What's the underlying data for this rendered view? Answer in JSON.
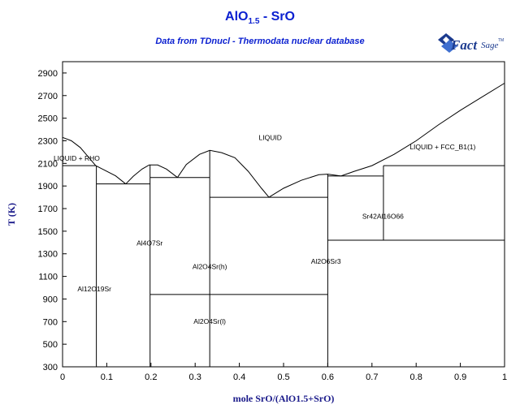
{
  "header": {
    "title_main": "AlO",
    "title_sub": "1.5",
    "title_rest": " - SrO",
    "subtitle": "Data from TDnucl - Thermodata nuclear database"
  },
  "logo": {
    "word1": "Fact",
    "word2": "Sage",
    "mark": "TM"
  },
  "chart_data": {
    "type": "line",
    "title": "AlO1.5 - SrO",
    "subtitle": "Data from TDnucl - Thermodata nuclear database",
    "xlabel": "mole SrO/(AlO1.5+SrO)",
    "ylabel": "T (K)",
    "xlim": [
      0,
      1
    ],
    "ylim": [
      300,
      3000
    ],
    "x_ticks": [
      {
        "v": 0,
        "label": "0"
      },
      {
        "v": 0.1,
        "label": "0.1"
      },
      {
        "v": 0.2,
        "label": "0.2"
      },
      {
        "v": 0.3,
        "label": "0.3"
      },
      {
        "v": 0.4,
        "label": "0.4"
      },
      {
        "v": 0.5,
        "label": "0.5"
      },
      {
        "v": 0.6,
        "label": "0.6"
      },
      {
        "v": 0.7,
        "label": "0.7"
      },
      {
        "v": 0.8,
        "label": "0.8"
      },
      {
        "v": 0.9,
        "label": "0.9"
      },
      {
        "v": 1,
        "label": "1"
      }
    ],
    "y_ticks": [
      {
        "v": 300,
        "label": "300"
      },
      {
        "v": 500,
        "label": "500"
      },
      {
        "v": 700,
        "label": "700"
      },
      {
        "v": 900,
        "label": "900"
      },
      {
        "v": 1100,
        "label": "1100"
      },
      {
        "v": 1300,
        "label": "1300"
      },
      {
        "v": 1500,
        "label": "1500"
      },
      {
        "v": 1700,
        "label": "1700"
      },
      {
        "v": 1900,
        "label": "1900"
      },
      {
        "v": 2100,
        "label": "2100"
      },
      {
        "v": 2300,
        "label": "2300"
      },
      {
        "v": 2500,
        "label": "2500"
      },
      {
        "v": 2700,
        "label": "2700"
      },
      {
        "v": 2900,
        "label": "2900"
      }
    ],
    "grid": false,
    "line_color": "#000000",
    "curves": [
      {
        "name": "liquidus-alumina",
        "points": [
          [
            0,
            2330
          ],
          [
            0.02,
            2300
          ],
          [
            0.04,
            2240
          ],
          [
            0.06,
            2150
          ],
          [
            0.075,
            2080
          ],
          [
            0.09,
            2050
          ],
          [
            0.12,
            1990
          ],
          [
            0.143,
            1918
          ]
        ]
      },
      {
        "name": "liquidus-al12o19sr",
        "points": [
          [
            0.143,
            1918
          ],
          [
            0.16,
            1985
          ],
          [
            0.18,
            2050
          ],
          [
            0.196,
            2086
          ]
        ]
      },
      {
        "name": "liquidus-al4o7sr-left",
        "points": [
          [
            0.196,
            2086
          ],
          [
            0.215,
            2086
          ],
          [
            0.235,
            2050
          ],
          [
            0.26,
            1975
          ]
        ]
      },
      {
        "name": "liquidus-al4o7sr-right",
        "points": [
          [
            0.26,
            1975
          ],
          [
            0.28,
            2090
          ],
          [
            0.31,
            2180
          ],
          [
            0.333,
            2215
          ],
          [
            0.36,
            2195
          ],
          [
            0.39,
            2150
          ],
          [
            0.42,
            2030
          ],
          [
            0.45,
            1880
          ],
          [
            0.467,
            1800
          ]
        ]
      },
      {
        "name": "liquidus-al2o6sr3",
        "points": [
          [
            0.467,
            1800
          ],
          [
            0.5,
            1880
          ],
          [
            0.54,
            1950
          ],
          [
            0.58,
            2000
          ],
          [
            0.6,
            2005
          ],
          [
            0.63,
            1988
          ]
        ]
      },
      {
        "name": "liquidus-sro",
        "points": [
          [
            0.63,
            1988
          ],
          [
            0.66,
            2030
          ],
          [
            0.7,
            2080
          ],
          [
            0.75,
            2180
          ],
          [
            0.8,
            2300
          ],
          [
            0.85,
            2440
          ],
          [
            0.9,
            2570
          ],
          [
            0.95,
            2690
          ],
          [
            1,
            2810
          ]
        ]
      }
    ],
    "boundaries": [
      {
        "from": [
          0,
          2080
        ],
        "to": [
          0.075,
          2080
        ]
      },
      {
        "from": [
          0.0765,
          300
        ],
        "to": [
          0.0765,
          2080
        ]
      },
      {
        "from": [
          0.0765,
          1918
        ],
        "to": [
          0.198,
          1918
        ]
      },
      {
        "from": [
          0.198,
          300
        ],
        "to": [
          0.198,
          2086
        ]
      },
      {
        "from": [
          0.198,
          1975
        ],
        "to": [
          0.333,
          1975
        ]
      },
      {
        "from": [
          0.333,
          300
        ],
        "to": [
          0.333,
          2215
        ]
      },
      {
        "from": [
          0.333,
          1800
        ],
        "to": [
          0.6,
          1800
        ]
      },
      {
        "from": [
          0.198,
          940
        ],
        "to": [
          0.6,
          940
        ]
      },
      {
        "from": [
          0.6,
          300
        ],
        "to": [
          0.6,
          2005
        ]
      },
      {
        "from": [
          0.6,
          1988
        ],
        "to": [
          0.726,
          1988
        ]
      },
      {
        "from": [
          0.726,
          1420
        ],
        "to": [
          0.726,
          2080
        ]
      },
      {
        "from": [
          0.6,
          1420
        ],
        "to": [
          1,
          1420
        ]
      },
      {
        "from": [
          0.726,
          2080
        ],
        "to": [
          1,
          2080
        ]
      }
    ],
    "annotations": [
      {
        "text": "LIQUID",
        "x": 0.47,
        "y": 2330
      },
      {
        "text": "LIQUID + RHO",
        "x": 0.032,
        "y": 2145
      },
      {
        "text": "LIQUID + FCC_B1(1)",
        "x": 0.86,
        "y": 2245
      },
      {
        "text": "Sr42Al16O66",
        "x": 0.725,
        "y": 1633
      },
      {
        "text": "Al4O7Sr",
        "x": 0.197,
        "y": 1395
      },
      {
        "text": "Al2O4Sr(h)",
        "x": 0.333,
        "y": 1187
      },
      {
        "text": "Al2O6Sr3",
        "x": 0.596,
        "y": 1233
      },
      {
        "text": "Al12O19Sr",
        "x": 0.072,
        "y": 990
      },
      {
        "text": "Al2O4Sr(l)",
        "x": 0.333,
        "y": 703
      }
    ]
  }
}
